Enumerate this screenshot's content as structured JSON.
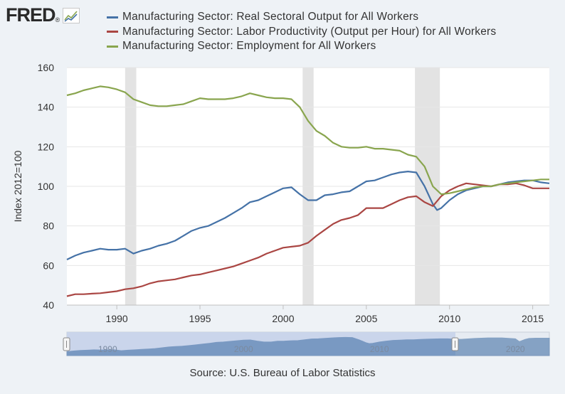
{
  "logo": {
    "text": "FRED",
    "registered": "®",
    "icon": "chart-line-icon"
  },
  "source": "Source: U.S. Bureau of Labor Statistics",
  "colors": {
    "output": "#4572a7",
    "productivity": "#aa4643",
    "employment": "#89a54e",
    "recession": "#e3e3e3",
    "navigator": "#4572a7"
  },
  "chart_data": {
    "type": "line",
    "title": "",
    "xlabel": "",
    "ylabel": "Index 2012=100",
    "xlim": [
      1987.0,
      2016.0
    ],
    "ylim": [
      40,
      160
    ],
    "yticks": [
      40,
      60,
      80,
      100,
      120,
      140,
      160
    ],
    "xticks": [
      1990,
      1995,
      2000,
      2005,
      2010,
      2015
    ],
    "recessions": [
      [
        1990.5,
        1991.17
      ],
      [
        2001.17,
        2001.83
      ],
      [
        2007.92,
        2009.42
      ]
    ],
    "navigator": {
      "labels": [
        "1990",
        "2000",
        "2010",
        "2020"
      ],
      "label_years": [
        1990,
        2000,
        2010,
        2020
      ],
      "range": [
        1987.0,
        2022.5
      ]
    },
    "series": [
      {
        "name": "Manufacturing Sector: Real Sectoral Output for All Workers",
        "color": "#4572a7",
        "x": [
          1987.0,
          1987.5,
          1988.0,
          1988.5,
          1989.0,
          1989.5,
          1990.0,
          1990.5,
          1991.0,
          1991.5,
          1992.0,
          1992.5,
          1993.0,
          1993.5,
          1994.0,
          1994.5,
          1995.0,
          1995.5,
          1996.0,
          1996.5,
          1997.0,
          1997.5,
          1998.0,
          1998.5,
          1999.0,
          1999.5,
          2000.0,
          2000.5,
          2001.0,
          2001.5,
          2002.0,
          2002.5,
          2003.0,
          2003.5,
          2004.0,
          2004.5,
          2005.0,
          2005.5,
          2006.0,
          2006.5,
          2007.0,
          2007.5,
          2008.0,
          2008.5,
          2009.0,
          2009.25,
          2009.5,
          2010.0,
          2010.5,
          2011.0,
          2011.5,
          2012.0,
          2012.5,
          2013.0,
          2013.5,
          2014.0,
          2014.5,
          2015.0,
          2015.5,
          2016.0
        ],
        "y": [
          63,
          65,
          66.5,
          67.5,
          68.5,
          68,
          68,
          68.5,
          66,
          67.5,
          68.5,
          70,
          71,
          72.5,
          75,
          77.5,
          79,
          80,
          82,
          84,
          86.5,
          89,
          92,
          93,
          95,
          97,
          99,
          99.5,
          96,
          93,
          93,
          95.5,
          96,
          97,
          97.5,
          100,
          102.5,
          103,
          104.5,
          106,
          107,
          107.5,
          107,
          100,
          91,
          88,
          89,
          93,
          96,
          98,
          99,
          100,
          100,
          101,
          102,
          102.5,
          103,
          103,
          102,
          101.5
        ]
      },
      {
        "name": "Manufacturing Sector: Labor Productivity (Output per Hour) for All Workers",
        "color": "#aa4643",
        "x": [
          1987.0,
          1987.5,
          1988.0,
          1988.5,
          1989.0,
          1989.5,
          1990.0,
          1990.5,
          1991.0,
          1991.5,
          1992.0,
          1992.5,
          1993.0,
          1993.5,
          1994.0,
          1994.5,
          1995.0,
          1995.5,
          1996.0,
          1996.5,
          1997.0,
          1997.5,
          1998.0,
          1998.5,
          1999.0,
          1999.5,
          2000.0,
          2000.5,
          2001.0,
          2001.5,
          2002.0,
          2002.5,
          2003.0,
          2003.5,
          2004.0,
          2004.5,
          2005.0,
          2005.5,
          2006.0,
          2006.5,
          2007.0,
          2007.5,
          2008.0,
          2008.5,
          2009.0,
          2009.5,
          2010.0,
          2010.5,
          2011.0,
          2011.5,
          2012.0,
          2012.5,
          2013.0,
          2013.5,
          2014.0,
          2014.5,
          2015.0,
          2015.5,
          2016.0
        ],
        "y": [
          44.5,
          45.5,
          45.5,
          45.8,
          46,
          46.5,
          47,
          48,
          48.5,
          49.5,
          51,
          52,
          52.5,
          53,
          54,
          55,
          55.5,
          56.5,
          57.5,
          58.5,
          59.5,
          61,
          62.5,
          64,
          66,
          67.5,
          69,
          69.5,
          70,
          71.5,
          75,
          78,
          81,
          83,
          84,
          85.5,
          89,
          89,
          89,
          91,
          93,
          94.5,
          95,
          92,
          90,
          95,
          98,
          100,
          101.5,
          101,
          100.5,
          100,
          101,
          101,
          101.5,
          100.5,
          99,
          99,
          99
        ]
      },
      {
        "name": "Manufacturing Sector: Employment for All Workers",
        "color": "#89a54e",
        "x": [
          1987.0,
          1987.5,
          1988.0,
          1988.5,
          1989.0,
          1989.5,
          1990.0,
          1990.5,
          1991.0,
          1991.5,
          1992.0,
          1992.5,
          1993.0,
          1993.5,
          1994.0,
          1994.5,
          1995.0,
          1995.5,
          1996.0,
          1996.5,
          1997.0,
          1997.5,
          1998.0,
          1998.5,
          1999.0,
          1999.5,
          2000.0,
          2000.5,
          2001.0,
          2001.5,
          2002.0,
          2002.5,
          2003.0,
          2003.5,
          2004.0,
          2004.5,
          2005.0,
          2005.5,
          2006.0,
          2006.5,
          2007.0,
          2007.5,
          2008.0,
          2008.5,
          2009.0,
          2009.5,
          2010.0,
          2010.5,
          2011.0,
          2011.5,
          2012.0,
          2012.5,
          2013.0,
          2013.5,
          2014.0,
          2014.5,
          2015.0,
          2015.5,
          2016.0
        ],
        "y": [
          146,
          147,
          148.5,
          149.5,
          150.5,
          150,
          149,
          147.5,
          144,
          142.5,
          141,
          140.5,
          140.5,
          141,
          141.5,
          143,
          144.5,
          144,
          144,
          144,
          144.5,
          145.5,
          147,
          146,
          145,
          144.5,
          144.5,
          144,
          140,
          133,
          128,
          125.5,
          122,
          120,
          119.5,
          119.5,
          120,
          119,
          119,
          118.5,
          118,
          116,
          115,
          110,
          100,
          96,
          96.5,
          97.5,
          98.5,
          99.5,
          100,
          100,
          101,
          101.5,
          102,
          102.5,
          103,
          103.5,
          103.5
        ]
      }
    ]
  }
}
